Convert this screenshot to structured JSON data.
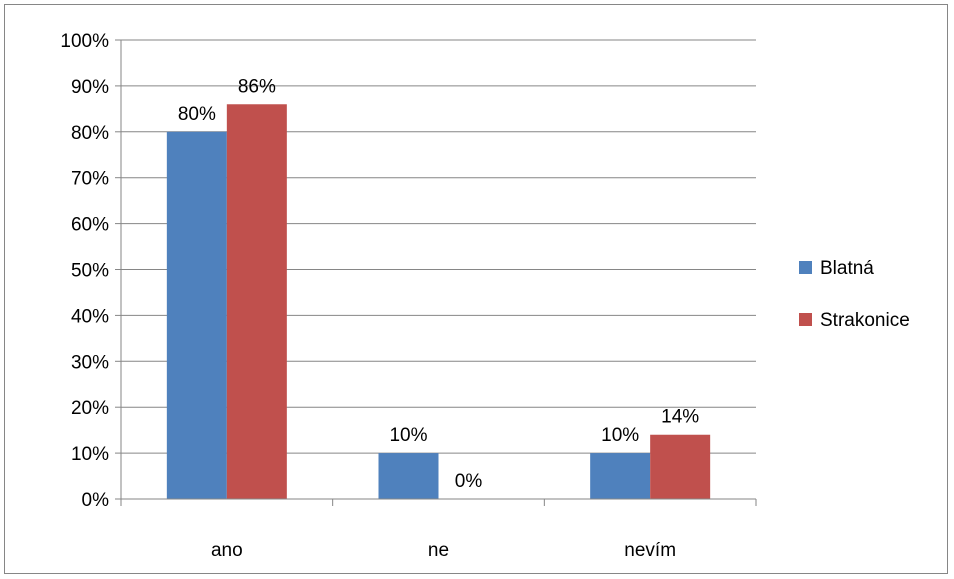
{
  "chart_data": {
    "type": "bar",
    "categories": [
      "ano",
      "ne",
      "nevím"
    ],
    "series": [
      {
        "name": "Blatná",
        "values": [
          80,
          10,
          10
        ],
        "labels": [
          "80%",
          "10%",
          "10%"
        ],
        "color": "#4F81BD"
      },
      {
        "name": "Strakonice",
        "values": [
          86,
          0,
          14
        ],
        "labels": [
          "86%",
          "0%",
          "14%"
        ],
        "color": "#C0504D"
      }
    ],
    "y_ticks": [
      "0%",
      "10%",
      "20%",
      "30%",
      "40%",
      "50%",
      "60%",
      "70%",
      "80%",
      "90%",
      "100%"
    ],
    "ylim": [
      0,
      100
    ],
    "grid": true,
    "legend_position": "right"
  }
}
